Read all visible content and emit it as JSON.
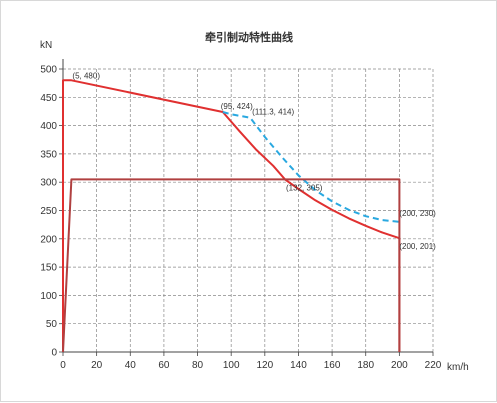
{
  "chart_data": {
    "type": "line",
    "title": "牵引制动特性曲线",
    "xlabel": "km/h",
    "ylabel": "kN",
    "xlim": [
      0,
      220
    ],
    "ylim": [
      0,
      500
    ],
    "x_ticks": [
      0,
      20,
      40,
      60,
      80,
      100,
      120,
      140,
      160,
      180,
      200,
      220
    ],
    "y_ticks": [
      0,
      50,
      100,
      150,
      200,
      250,
      300,
      350,
      400,
      450,
      500
    ],
    "grid": true,
    "legend": "none",
    "colors": {
      "traction": "#e03030",
      "dashed": "#29a8e0",
      "brake": "#b04040",
      "grid": "#888888",
      "axis": "#444444"
    },
    "series": [
      {
        "key": "traction",
        "style": "solid",
        "points": [
          [
            0,
            0
          ],
          [
            0,
            480
          ],
          [
            5,
            480
          ],
          [
            95,
            424
          ],
          [
            105,
            390
          ],
          [
            115,
            357
          ],
          [
            125,
            329
          ],
          [
            132,
            305
          ],
          [
            140,
            288
          ],
          [
            150,
            268
          ],
          [
            160,
            251
          ],
          [
            170,
            236
          ],
          [
            180,
            223
          ],
          [
            190,
            211
          ],
          [
            200,
            201
          ],
          [
            200,
            0
          ]
        ]
      },
      {
        "key": "dashed",
        "style": "dashed",
        "points": [
          [
            95,
            424
          ],
          [
            100,
            420
          ],
          [
            111.3,
            414
          ],
          [
            120,
            380
          ],
          [
            130,
            345
          ],
          [
            140,
            312
          ],
          [
            150,
            286
          ],
          [
            160,
            266
          ],
          [
            170,
            251
          ],
          [
            180,
            240
          ],
          [
            190,
            233
          ],
          [
            200,
            230
          ]
        ]
      },
      {
        "key": "brake",
        "style": "solid",
        "points": [
          [
            0,
            0
          ],
          [
            5,
            305
          ],
          [
            132,
            305
          ],
          [
            200,
            305
          ],
          [
            200,
            0
          ]
        ]
      }
    ],
    "annotations": [
      {
        "text": "(5, 480)",
        "x": 5,
        "y": 480
      },
      {
        "text": "(95, 424)",
        "x": 95,
        "y": 424
      },
      {
        "text": "(111.3, 414)",
        "x": 111.3,
        "y": 414
      },
      {
        "text": "(132, 305)",
        "x": 132,
        "y": 305
      },
      {
        "text": "(200, 230)",
        "x": 200,
        "y": 230
      },
      {
        "text": "(200, 201)",
        "x": 200,
        "y": 201
      }
    ]
  }
}
